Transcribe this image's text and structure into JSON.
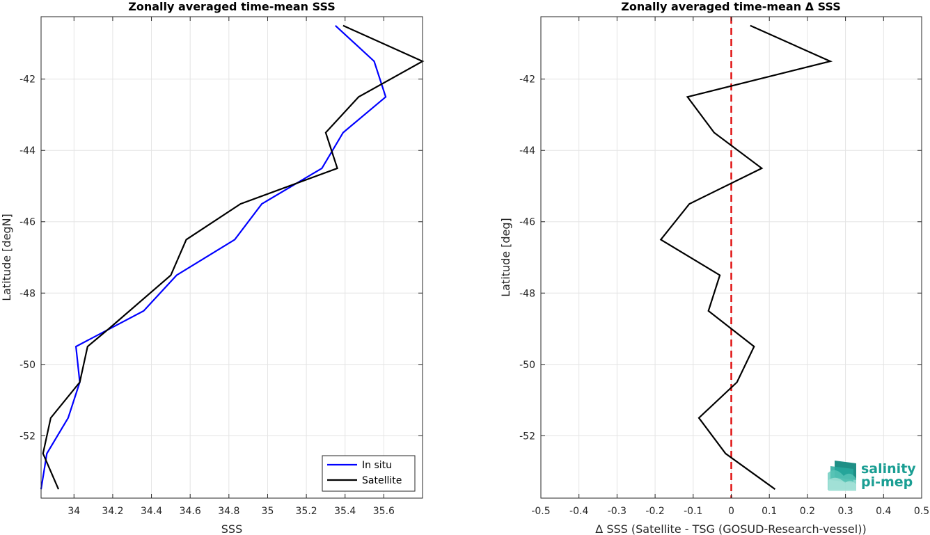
{
  "chart_data": [
    {
      "type": "line",
      "title": "Zonally averaged time-mean SSS",
      "xlabel": "SSS",
      "ylabel": "Latitude [degN]",
      "xlim": [
        33.83,
        35.8
      ],
      "ylim": [
        -53.75,
        -40.25
      ],
      "xticks": [
        34,
        34.2,
        34.4,
        34.6,
        34.8,
        35,
        35.2,
        35.4,
        35.6
      ],
      "xtick_labels": [
        "34",
        "34.2",
        "34.4",
        "34.6",
        "34.8",
        "35",
        "35.2",
        "35.4",
        "35.6"
      ],
      "yticks": [
        -42,
        -44,
        -46,
        -48,
        -50,
        -52
      ],
      "ytick_labels": [
        "-42",
        "-44",
        "-46",
        "-48",
        "-50",
        "-52"
      ],
      "grid": true,
      "legend_position": "bottom-right",
      "series": [
        {
          "name": "In situ",
          "color": "#0000ff",
          "x": [
            35.35,
            35.55,
            35.61,
            35.39,
            35.28,
            34.97,
            34.83,
            34.53,
            34.36,
            34.01,
            34.03,
            33.97,
            33.86,
            33.83
          ],
          "y": [
            -40.5,
            -41.5,
            -42.5,
            -43.5,
            -44.5,
            -45.5,
            -46.5,
            -47.5,
            -48.5,
            -49.5,
            -50.5,
            -51.5,
            -52.5,
            -53.5
          ]
        },
        {
          "name": "Satellite",
          "color": "#000000",
          "x": [
            35.39,
            35.8,
            35.47,
            35.3,
            35.36,
            34.86,
            34.58,
            34.5,
            34.18,
            34.07,
            34.03,
            33.88,
            33.84,
            33.92
          ],
          "y": [
            -40.5,
            -41.5,
            -42.5,
            -43.5,
            -44.5,
            -45.5,
            -46.5,
            -47.5,
            -49.0,
            -49.5,
            -50.5,
            -51.5,
            -52.5,
            -53.5
          ]
        }
      ]
    },
    {
      "type": "line",
      "title": "Zonally averaged time-mean Δ SSS",
      "xlabel": "Δ SSS (Satellite - TSG (GOSUD-Research-vessel))",
      "ylabel": "Latitude [deg]",
      "xlim": [
        -0.5,
        0.5
      ],
      "ylim": [
        -53.75,
        -40.25
      ],
      "xticks": [
        -0.5,
        -0.4,
        -0.3,
        -0.2,
        -0.1,
        0,
        0.1,
        0.2,
        0.3,
        0.4,
        0.5
      ],
      "xtick_labels": [
        "-0.5",
        "-0.4",
        "-0.3",
        "-0.2",
        "-0.1",
        "0",
        "0.1",
        "0.2",
        "0.3",
        "0.4",
        "0.5"
      ],
      "yticks": [
        -42,
        -44,
        -46,
        -48,
        -50,
        -52
      ],
      "ytick_labels": [
        "-42",
        "-44",
        "-46",
        "-48",
        "-50",
        "-52"
      ],
      "grid": true,
      "reference_line": {
        "x": 0,
        "color": "#e01010",
        "style": "dashed"
      },
      "series": [
        {
          "color": "#000000",
          "x": [
            0.05,
            0.26,
            -0.115,
            -0.045,
            0.08,
            -0.11,
            -0.185,
            -0.03,
            -0.06,
            0.06,
            0.015,
            -0.085,
            -0.015,
            0.115
          ],
          "y": [
            -40.5,
            -41.5,
            -42.5,
            -43.5,
            -44.5,
            -45.5,
            -46.5,
            -47.5,
            -48.5,
            -49.5,
            -50.5,
            -51.5,
            -52.5,
            -53.5
          ]
        }
      ]
    }
  ],
  "logo": {
    "line1": "salinity",
    "line2": "pi-mep",
    "color": "#1a9e93"
  }
}
